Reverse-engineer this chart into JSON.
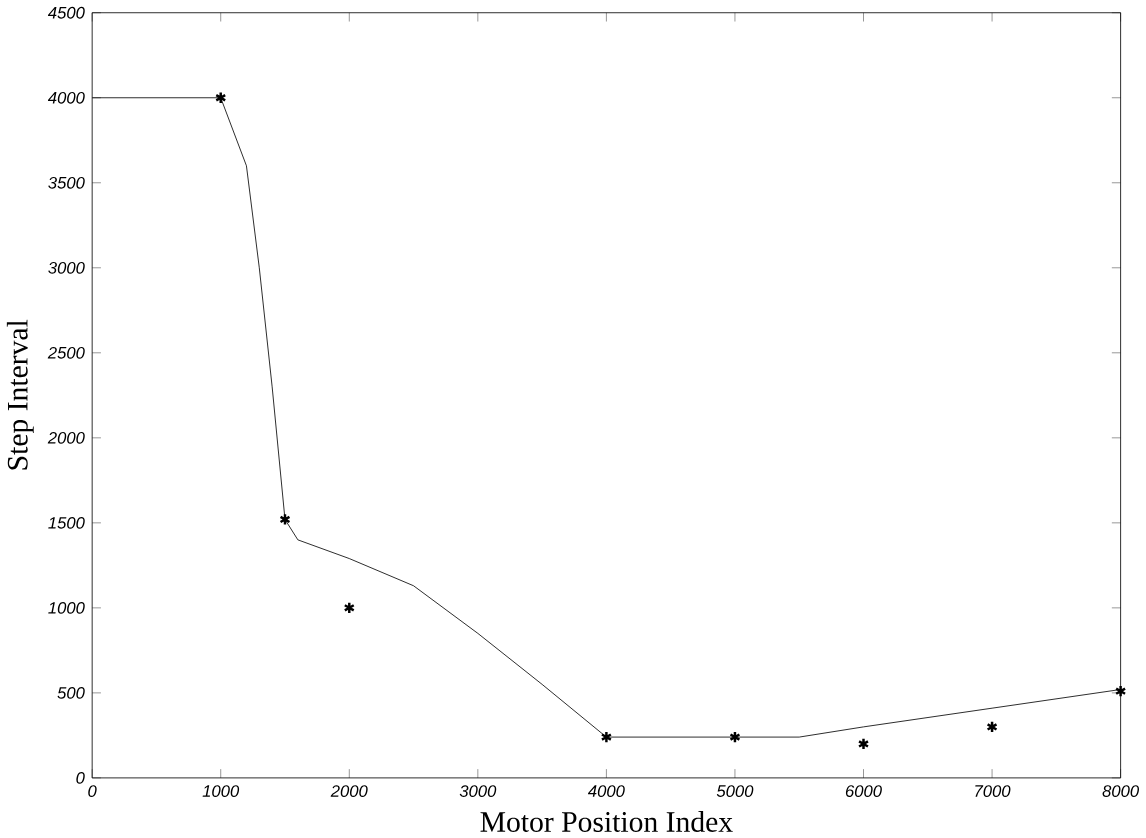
{
  "chart_data": {
    "type": "line",
    "xlabel": "Motor Position Index",
    "ylabel": "Step Interval",
    "xlim": [
      0,
      8000
    ],
    "ylim": [
      0,
      4500
    ],
    "xticks": [
      0,
      1000,
      2000,
      3000,
      4000,
      5000,
      6000,
      7000,
      8000
    ],
    "yticks": [
      0,
      500,
      1000,
      1500,
      2000,
      2500,
      3000,
      3500,
      4000,
      4500
    ],
    "grid": false,
    "series": [
      {
        "color": "#000000",
        "marker": "none",
        "line_style": "solid",
        "x": [
          0,
          1000,
          1200,
          1300,
          1400,
          1500,
          1600,
          2000,
          2500,
          3000,
          3500,
          4000,
          5500,
          6000,
          7000,
          8000
        ],
        "values": [
          4000,
          4000,
          3600,
          3000,
          2300,
          1520,
          1400,
          1290,
          1130,
          850,
          550,
          240,
          240,
          300,
          410,
          520
        ]
      },
      {
        "type": "scatter",
        "color": "#000000",
        "marker": "cross",
        "x": [
          1000,
          1500,
          2000,
          4000,
          5000,
          6000,
          7000,
          8000
        ],
        "values": [
          4000,
          1520,
          1000,
          240,
          240,
          200,
          300,
          510
        ]
      }
    ]
  }
}
